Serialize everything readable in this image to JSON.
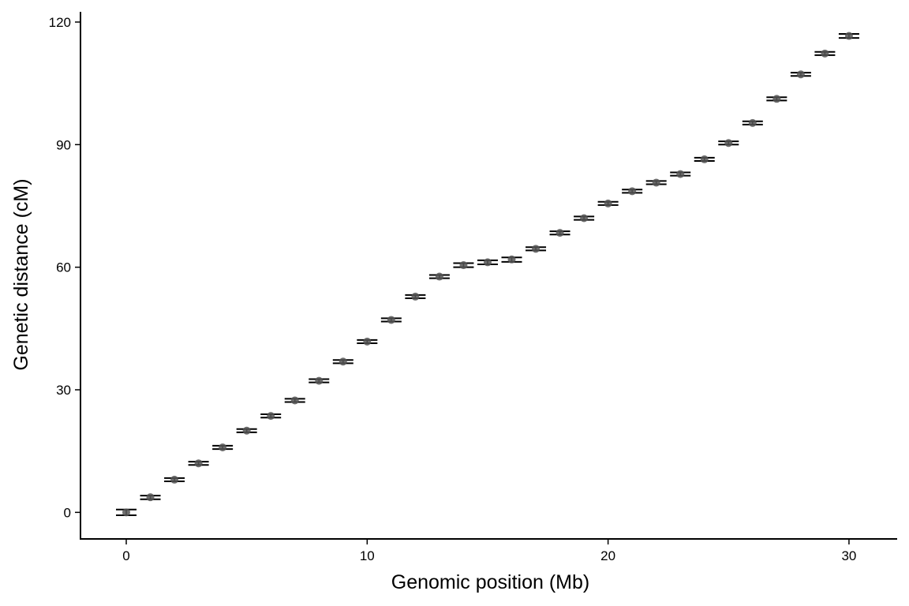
{
  "chart_data": {
    "type": "scatter",
    "title": "",
    "xlabel": "Genomic position (Mb)",
    "ylabel": "Genetic distance (cM)",
    "xlim": [
      -1.9,
      32
    ],
    "ylim": [
      -6.5,
      122.5
    ],
    "xticks": [
      0,
      10,
      20,
      30
    ],
    "yticks": [
      0,
      30,
      60,
      90,
      120
    ],
    "grid": false,
    "legend": "none",
    "point_color": "#555555",
    "bar_color": "#000000",
    "x": [
      0,
      1,
      2,
      3,
      4,
      5,
      6,
      7,
      8,
      9,
      10,
      11,
      12,
      13,
      14,
      15,
      16,
      17,
      18,
      19,
      20,
      21,
      22,
      23,
      24,
      25,
      26,
      27,
      28,
      29,
      30
    ],
    "y": [
      0,
      3.7,
      8.0,
      12.0,
      15.9,
      20.0,
      23.6,
      27.4,
      32.2,
      36.9,
      41.8,
      47.1,
      52.8,
      57.7,
      60.5,
      61.2,
      61.9,
      64.5,
      68.4,
      72.0,
      75.6,
      78.6,
      80.7,
      82.8,
      86.4,
      90.4,
      95.3,
      101.2,
      107.2,
      112.3,
      116.6
    ],
    "y_lower": [
      -0.7,
      3.2,
      7.6,
      11.6,
      15.5,
      19.6,
      23.2,
      27.0,
      31.8,
      36.5,
      41.4,
      46.7,
      52.4,
      57.3,
      60.0,
      60.7,
      61.3,
      64.1,
      68.0,
      71.6,
      75.2,
      78.2,
      80.3,
      82.4,
      86.0,
      90.0,
      94.9,
      100.8,
      106.8,
      111.9,
      116.1
    ],
    "y_upper": [
      0.7,
      4.1,
      8.4,
      12.4,
      16.3,
      20.4,
      24.0,
      27.8,
      32.6,
      37.3,
      42.2,
      47.5,
      53.2,
      58.1,
      61.0,
      61.7,
      62.4,
      64.9,
      68.8,
      72.4,
      76.0,
      79.0,
      81.1,
      83.2,
      86.8,
      90.8,
      95.7,
      101.6,
      107.6,
      112.7,
      117.1
    ]
  }
}
